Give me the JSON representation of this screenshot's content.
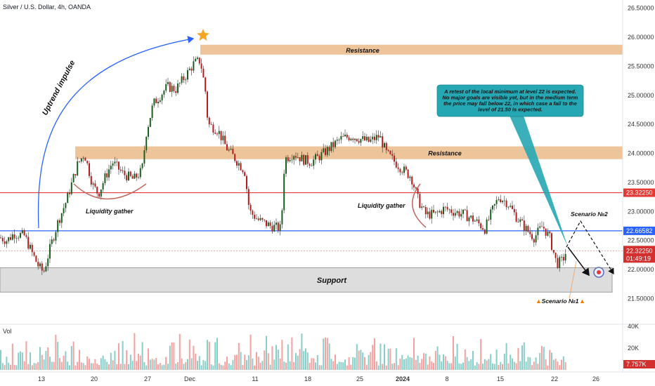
{
  "header": {
    "title": "Silver / U.S. Dollar, 4h, OANDA"
  },
  "chart_data": {
    "type": "candlestick",
    "symbol": "Silver / U.S. Dollar",
    "timeframe": "4h",
    "source": "OANDA",
    "ylim": [
      21.0,
      26.6
    ],
    "y_ticks": [
      "26.50000",
      "26.00000",
      "25.50000",
      "25.00000",
      "24.50000",
      "24.00000",
      "23.50000",
      "23.00000",
      "22.50000",
      "22.00000",
      "21.50000"
    ],
    "x_ticks": [
      "13",
      "20",
      "27",
      "Dec",
      "11",
      "18",
      "25",
      "2024",
      "8",
      "15",
      "22",
      "26"
    ],
    "price_path": [
      [
        0,
        22.55
      ],
      [
        10,
        22.5
      ],
      [
        20,
        22.62
      ],
      [
        35,
        22.58
      ],
      [
        45,
        22.3
      ],
      [
        55,
        22.05
      ],
      [
        62,
        21.95
      ],
      [
        72,
        22.4
      ],
      [
        82,
        22.8
      ],
      [
        95,
        23.2
      ],
      [
        110,
        23.8
      ],
      [
        120,
        24.0
      ],
      [
        132,
        23.45
      ],
      [
        140,
        23.3
      ],
      [
        150,
        23.6
      ],
      [
        160,
        23.85
      ],
      [
        175,
        23.65
      ],
      [
        190,
        23.55
      ],
      [
        202,
        23.7
      ],
      [
        208,
        24.35
      ],
      [
        218,
        24.85
      ],
      [
        228,
        25.0
      ],
      [
        238,
        25.15
      ],
      [
        250,
        25.1
      ],
      [
        262,
        25.3
      ],
      [
        276,
        25.55
      ],
      [
        285,
        25.6
      ],
      [
        292,
        25.1
      ],
      [
        296,
        24.5
      ],
      [
        310,
        24.4
      ],
      [
        322,
        24.1
      ],
      [
        335,
        23.9
      ],
      [
        348,
        23.7
      ],
      [
        355,
        23.0
      ],
      [
        368,
        22.85
      ],
      [
        385,
        22.75
      ],
      [
        400,
        22.7
      ],
      [
        405,
        23.9
      ],
      [
        418,
        24.0
      ],
      [
        430,
        23.9
      ],
      [
        442,
        23.85
      ],
      [
        455,
        23.95
      ],
      [
        470,
        24.1
      ],
      [
        485,
        24.25
      ],
      [
        500,
        24.3
      ],
      [
        512,
        24.25
      ],
      [
        525,
        24.2
      ],
      [
        540,
        24.3
      ],
      [
        550,
        24.0
      ],
      [
        562,
        23.85
      ],
      [
        575,
        23.7
      ],
      [
        585,
        23.6
      ],
      [
        595,
        23.2
      ],
      [
        605,
        22.95
      ],
      [
        620,
        22.95
      ],
      [
        632,
        23.05
      ],
      [
        645,
        23.0
      ],
      [
        660,
        22.95
      ],
      [
        675,
        22.85
      ],
      [
        690,
        22.7
      ],
      [
        700,
        23.0
      ],
      [
        710,
        23.25
      ],
      [
        722,
        23.15
      ],
      [
        735,
        22.9
      ],
      [
        748,
        22.7
      ],
      [
        760,
        22.55
      ],
      [
        772,
        22.75
      ],
      [
        782,
        22.55
      ],
      [
        792,
        22.1
      ],
      [
        800,
        22.15
      ],
      [
        806,
        22.32
      ]
    ],
    "horizontal_levels": [
      {
        "value": 23.3225,
        "label": "23.32250",
        "color": "#e53935"
      },
      {
        "value": 22.66582,
        "label": "22.66582",
        "color": "#2962ff"
      },
      {
        "value": 22.3225,
        "label": "22.32250",
        "color": "#d32f2f"
      }
    ],
    "current_price": {
      "label": "22.32250",
      "countdown": "01:49:19",
      "color": "#d32f2f"
    },
    "zones": [
      {
        "label": "Resistance",
        "from": 25.7,
        "to": 25.87,
        "color": "#e8b27a"
      },
      {
        "label": "Resistance",
        "from": 23.9,
        "to": 24.12,
        "color": "#e8b27a"
      },
      {
        "label": "Support",
        "from": 21.61,
        "to": 22.03,
        "color": "#d9d9d9"
      }
    ],
    "annotations": {
      "uptrend": "Uptrend impulse",
      "liquidity_1": "Liquidity gather",
      "liquidity_2": "Liquidity gather",
      "scenario_1": "Scenario №1",
      "scenario_2": "Scenario №2",
      "callout": "A retest of the local minimum at level 22 is expected. No major goals are visible yet, but in the medium term the price may fall below 22, in which case a fall to the level of 21.50 is expected."
    },
    "volume": {
      "label": "Vol",
      "y_ticks": [
        "40K",
        "20K"
      ],
      "current": "7.757K",
      "current_color": "#d32f2f"
    }
  },
  "colors": {
    "up": "#26a69a",
    "up_fill": "#1b5e20",
    "down": "#b71c1c",
    "callout_bg": "#26a7b4"
  }
}
